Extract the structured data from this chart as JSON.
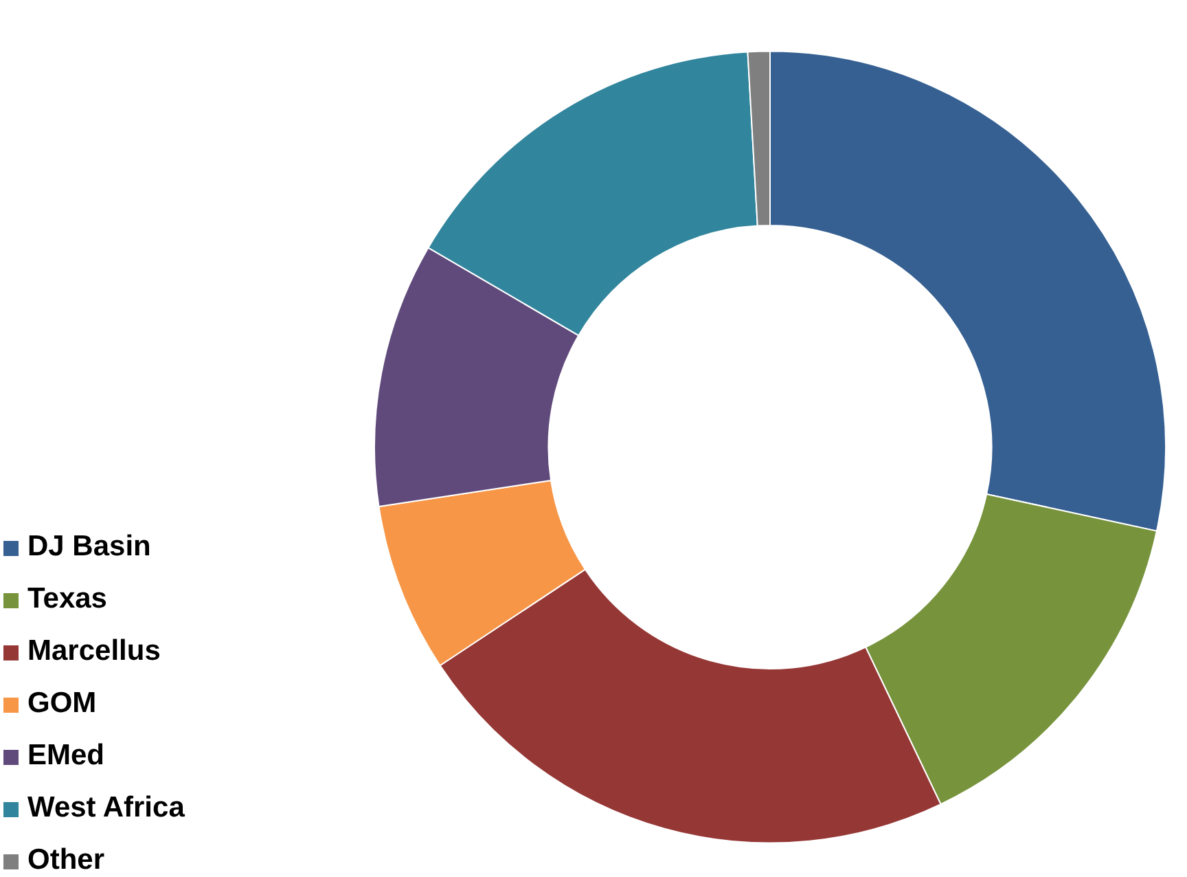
{
  "chart_data": {
    "type": "donut",
    "legend": "bottom left",
    "categories": [
      "DJ Basin",
      "Texas",
      "Marcellus",
      "GOM",
      "EMed",
      "West Africa",
      "Other"
    ],
    "values": [
      28.4,
      14.5,
      22.8,
      6.9,
      10.8,
      15.7,
      0.9
    ],
    "colors": [
      "#366092",
      "#77933c",
      "#953735",
      "#f79646",
      "#604a7b",
      "#31859c",
      "#7f7f7f"
    ]
  }
}
